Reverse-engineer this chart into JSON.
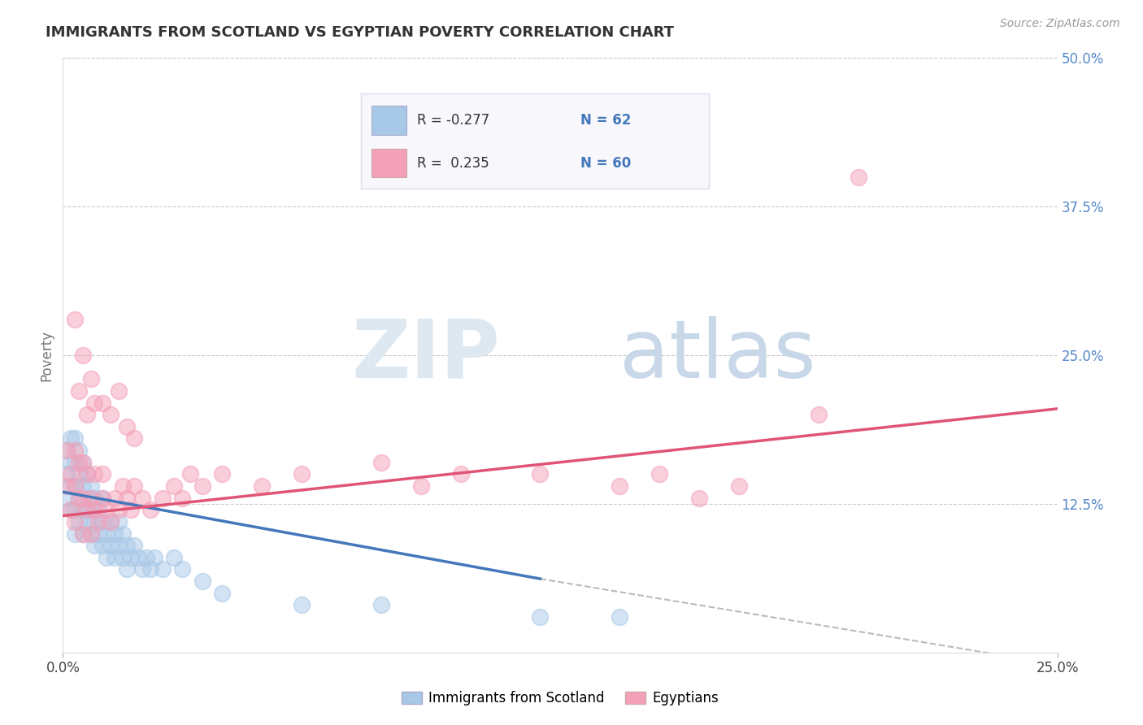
{
  "title": "IMMIGRANTS FROM SCOTLAND VS EGYPTIAN POVERTY CORRELATION CHART",
  "source": "Source: ZipAtlas.com",
  "ylabel": "Poverty",
  "xlim": [
    0.0,
    0.25
  ],
  "ylim": [
    0.0,
    0.5
  ],
  "xtick_positions": [
    0.0,
    0.25
  ],
  "xtick_labels": [
    "0.0%",
    "25.0%"
  ],
  "ytick_positions_right": [
    0.5,
    0.375,
    0.25,
    0.125
  ],
  "ytick_labels_right": [
    "50.0%",
    "37.5%",
    "25.0%",
    "12.5%"
  ],
  "color_scotland": "#a8c8e8",
  "color_egypt": "#f4a0b8",
  "color_line_scotland": "#4477bb",
  "color_line_egypt": "#e05575",
  "color_line_dash": "#bbbbbb",
  "watermark_zip_color": "#dde8f0",
  "watermark_atlas_color": "#c8d8e8",
  "legend_box_color": "#f8f8fc",
  "legend_border_color": "#ddddee",
  "r_value_color": "#4477bb",
  "n_value_color": "#4477bb",
  "scotland_r": -0.277,
  "scotland_n": 62,
  "egypt_r": 0.235,
  "egypt_n": 60,
  "trend_scotland_x0": 0.0,
  "trend_scotland_y0": 0.135,
  "trend_scotland_x1": 0.12,
  "trend_scotland_y1": 0.062,
  "trend_dash_x0": 0.12,
  "trend_dash_y0": 0.062,
  "trend_dash_x1": 0.25,
  "trend_dash_y1": -0.01,
  "trend_egypt_x0": 0.0,
  "trend_egypt_y0": 0.115,
  "trend_egypt_x1": 0.25,
  "trend_egypt_y1": 0.205,
  "scotland_x": [
    0.001,
    0.001,
    0.001,
    0.002,
    0.002,
    0.002,
    0.002,
    0.003,
    0.003,
    0.003,
    0.003,
    0.003,
    0.004,
    0.004,
    0.004,
    0.004,
    0.005,
    0.005,
    0.005,
    0.005,
    0.006,
    0.006,
    0.006,
    0.007,
    0.007,
    0.007,
    0.008,
    0.008,
    0.008,
    0.009,
    0.009,
    0.01,
    0.01,
    0.01,
    0.011,
    0.011,
    0.012,
    0.012,
    0.013,
    0.013,
    0.014,
    0.014,
    0.015,
    0.015,
    0.016,
    0.016,
    0.017,
    0.018,
    0.019,
    0.02,
    0.021,
    0.022,
    0.023,
    0.025,
    0.028,
    0.03,
    0.035,
    0.04,
    0.06,
    0.08,
    0.12,
    0.14
  ],
  "scotland_y": [
    0.13,
    0.15,
    0.17,
    0.12,
    0.14,
    0.16,
    0.18,
    0.1,
    0.12,
    0.14,
    0.16,
    0.18,
    0.11,
    0.13,
    0.15,
    0.17,
    0.1,
    0.12,
    0.14,
    0.16,
    0.11,
    0.13,
    0.15,
    0.1,
    0.12,
    0.14,
    0.09,
    0.11,
    0.13,
    0.1,
    0.12,
    0.09,
    0.11,
    0.13,
    0.08,
    0.1,
    0.09,
    0.11,
    0.08,
    0.1,
    0.09,
    0.11,
    0.08,
    0.1,
    0.07,
    0.09,
    0.08,
    0.09,
    0.08,
    0.07,
    0.08,
    0.07,
    0.08,
    0.07,
    0.08,
    0.07,
    0.06,
    0.05,
    0.04,
    0.04,
    0.03,
    0.03
  ],
  "egypt_x": [
    0.001,
    0.001,
    0.002,
    0.002,
    0.003,
    0.003,
    0.003,
    0.004,
    0.004,
    0.005,
    0.005,
    0.005,
    0.006,
    0.006,
    0.007,
    0.007,
    0.008,
    0.008,
    0.009,
    0.01,
    0.01,
    0.011,
    0.012,
    0.013,
    0.014,
    0.015,
    0.016,
    0.017,
    0.018,
    0.02,
    0.022,
    0.025,
    0.028,
    0.03,
    0.032,
    0.035,
    0.04,
    0.05,
    0.06,
    0.08,
    0.09,
    0.1,
    0.12,
    0.14,
    0.15,
    0.16,
    0.17,
    0.19,
    0.2,
    0.003,
    0.004,
    0.005,
    0.006,
    0.007,
    0.008,
    0.01,
    0.012,
    0.014,
    0.016,
    0.018
  ],
  "egypt_y": [
    0.14,
    0.17,
    0.12,
    0.15,
    0.11,
    0.14,
    0.17,
    0.13,
    0.16,
    0.1,
    0.13,
    0.16,
    0.12,
    0.15,
    0.1,
    0.13,
    0.12,
    0.15,
    0.11,
    0.13,
    0.15,
    0.12,
    0.11,
    0.13,
    0.12,
    0.14,
    0.13,
    0.12,
    0.14,
    0.13,
    0.12,
    0.13,
    0.14,
    0.13,
    0.15,
    0.14,
    0.15,
    0.14,
    0.15,
    0.16,
    0.14,
    0.15,
    0.15,
    0.14,
    0.15,
    0.13,
    0.14,
    0.2,
    0.4,
    0.28,
    0.22,
    0.25,
    0.2,
    0.23,
    0.21,
    0.21,
    0.2,
    0.22,
    0.19,
    0.18
  ]
}
